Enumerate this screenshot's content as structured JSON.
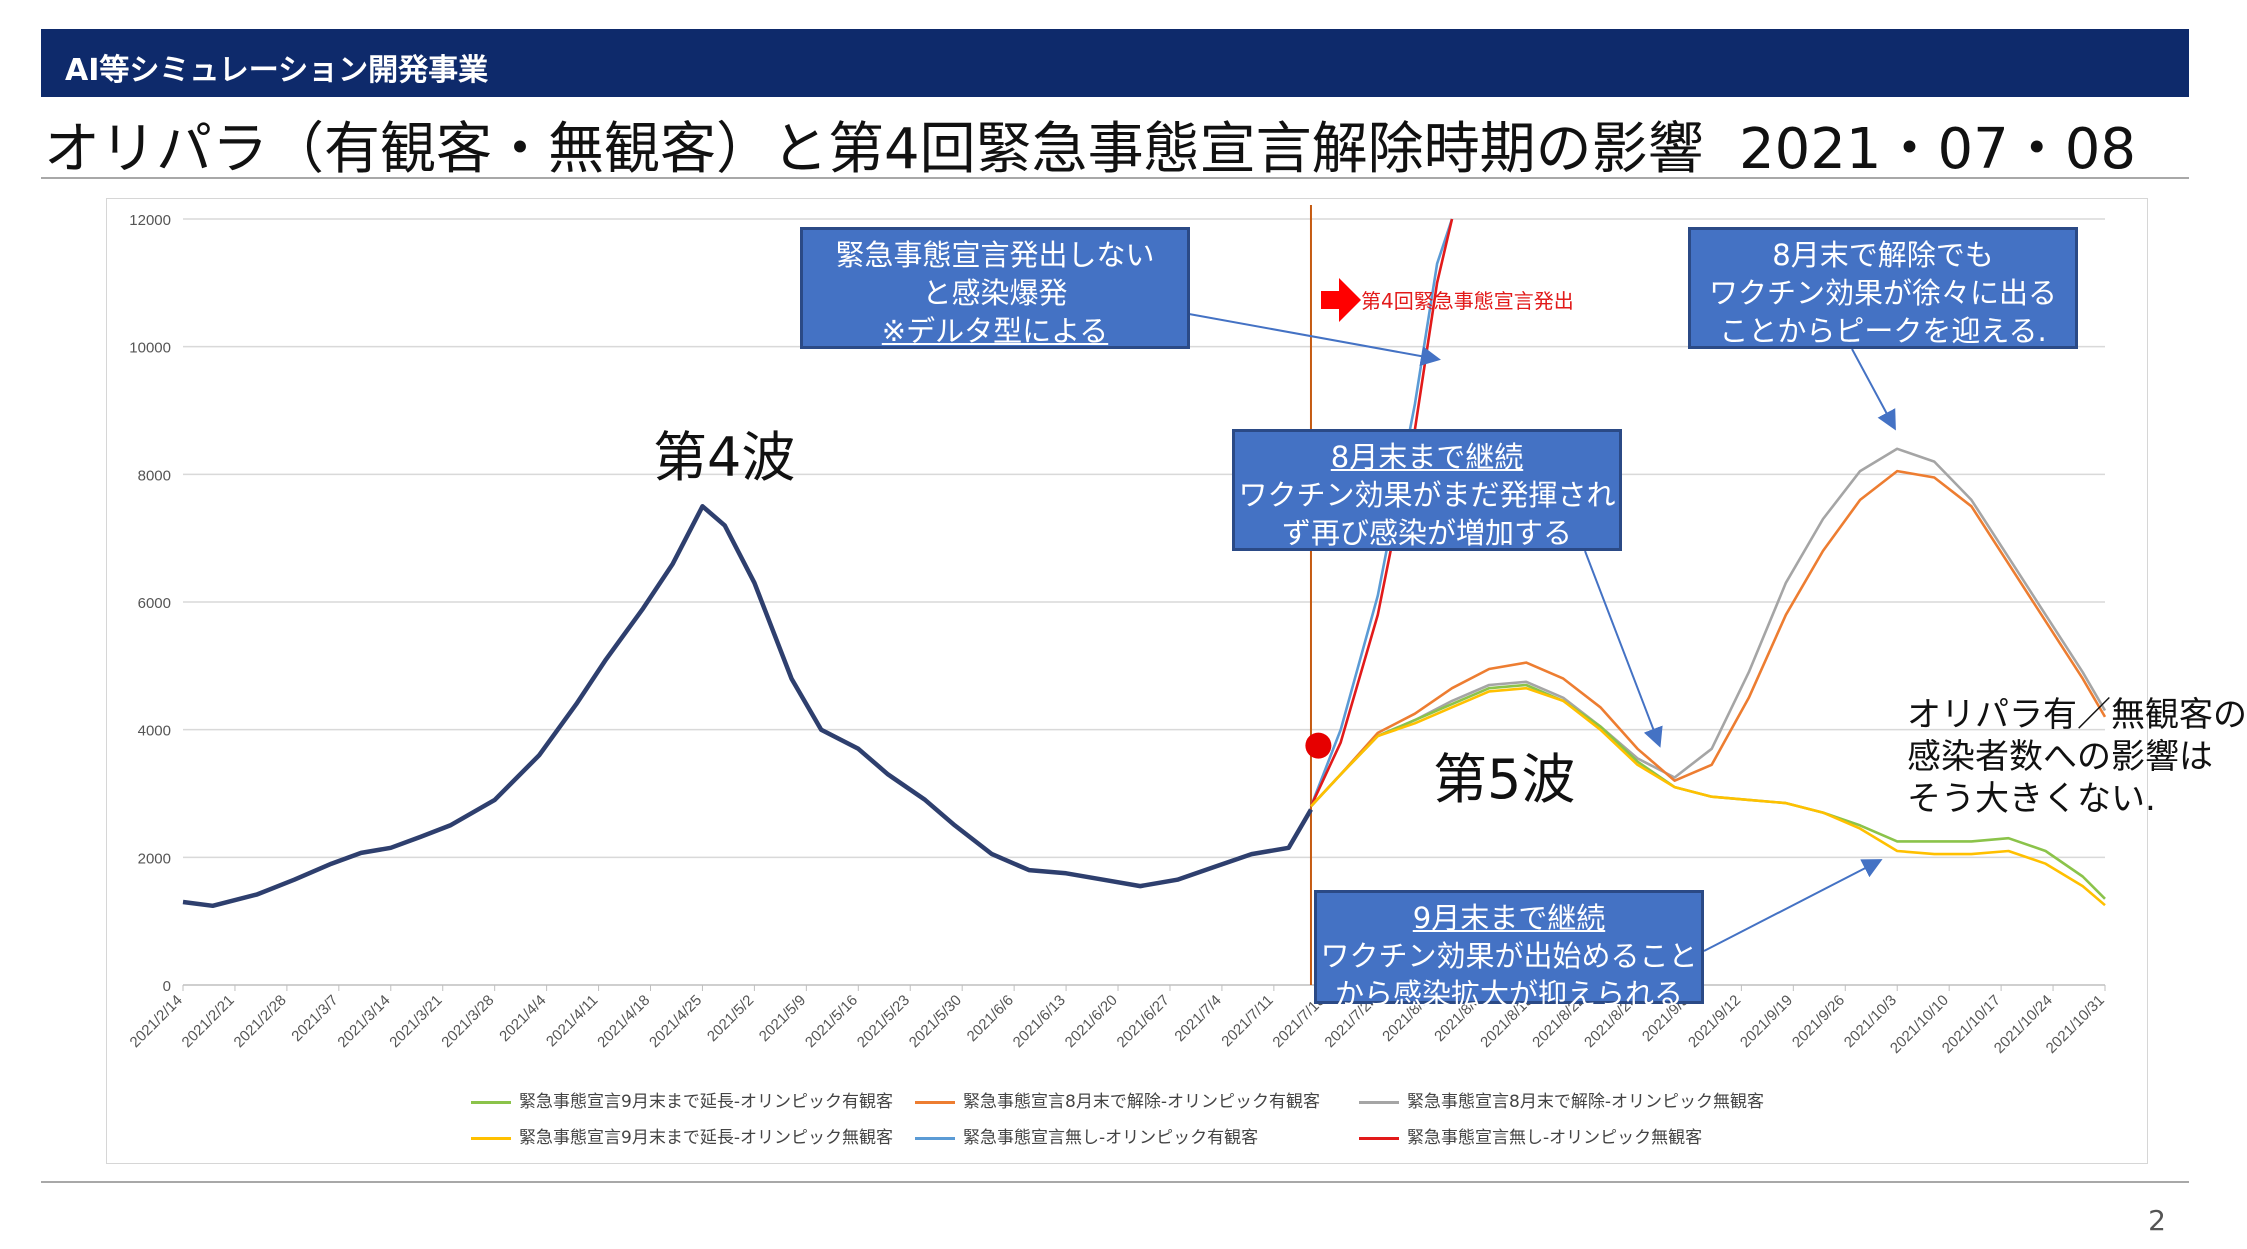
{
  "header": {
    "band_label": "AI等シミュレーション開発事業"
  },
  "title": "オリパラ（有観客・無観客）と第4回緊急事態宣言解除時期の影響",
  "date": "2021・07・08",
  "page_number": "2",
  "callouts": {
    "c1": {
      "line1": "緊急事態宣言発出しない",
      "line2": "と感染爆発",
      "line3": "※デルタ型による"
    },
    "c2": {
      "line1": "8月末で解除でも",
      "line2": "ワクチン効果が徐々に出る",
      "line3": "ことからピークを迎える."
    },
    "c3": {
      "line1": "8月末まで継続",
      "line2": "ワクチン効果がまだ発揮され",
      "line3": "ず再び感染が増加する"
    },
    "c4": {
      "line1": "9月末まで継続",
      "line2": "ワクチン効果が出始めること",
      "line3": "から感染拡大が抑えられる"
    }
  },
  "wave4_label": "第4波",
  "wave5_label": "第5波",
  "emergency_label": "第4回緊急事態宣言発出",
  "note": {
    "line1": "オリパラ有／無観客の",
    "line2": "感染者数への影響は",
    "line3": "そう大きくない."
  },
  "colors": {
    "header": "#0e2a6b",
    "callout": "#4472c4",
    "actual": "#2e3f6e",
    "green": "#8bc34a",
    "orange": "#ed7d31",
    "gray": "#a5a5a5",
    "yellow": "#ffc000",
    "blue": "#5b9bd5",
    "red": "#e21a1a",
    "vline": "#c55a11"
  },
  "chart_data": {
    "type": "line",
    "ylim": [
      0,
      12000
    ],
    "yticks": [
      0,
      2000,
      4000,
      6000,
      8000,
      10000,
      12000
    ],
    "xlim": [
      "2021/2/14",
      "2021/10/31"
    ],
    "x_tick_labels": [
      "2021/2/14",
      "2021/2/21",
      "2021/2/28",
      "2021/3/7",
      "2021/3/14",
      "2021/3/21",
      "2021/3/28",
      "2021/4/4",
      "2021/4/11",
      "2021/4/18",
      "2021/4/25",
      "2021/5/2",
      "2021/5/9",
      "2021/5/16",
      "2021/5/23",
      "2021/5/30",
      "2021/6/6",
      "2021/6/13",
      "2021/6/20",
      "2021/6/27",
      "2021/7/4",
      "2021/7/11",
      "2021/7/18",
      "2021/7/25",
      "2021/8/1",
      "2021/8/8",
      "2021/8/15",
      "2021/8/22",
      "2021/8/29",
      "2021/9/5",
      "2021/9/12",
      "2021/9/19",
      "2021/9/26",
      "2021/10/3",
      "2021/10/10",
      "2021/10/17",
      "2021/10/24",
      "2021/10/31"
    ],
    "vline_x": "2021/7/16",
    "marker": {
      "x": "2021/7/17",
      "y": 3750
    },
    "actual": {
      "x": [
        "2021/2/14",
        "2021/2/18",
        "2021/2/24",
        "2021/3/1",
        "2021/3/6",
        "2021/3/10",
        "2021/3/14",
        "2021/3/18",
        "2021/3/22",
        "2021/3/28",
        "2021/4/3",
        "2021/4/8",
        "2021/4/12",
        "2021/4/17",
        "2021/4/21",
        "2021/4/25",
        "2021/4/28",
        "2021/5/2",
        "2021/5/7",
        "2021/5/11",
        "2021/5/16",
        "2021/5/20",
        "2021/5/25",
        "2021/5/29",
        "2021/6/3",
        "2021/6/8",
        "2021/6/13",
        "2021/6/18",
        "2021/6/23",
        "2021/6/28",
        "2021/7/3",
        "2021/7/8",
        "2021/7/13",
        "2021/7/16"
      ],
      "y": [
        1300,
        1240,
        1420,
        1650,
        1900,
        2070,
        2150,
        2320,
        2500,
        2900,
        3600,
        4400,
        5100,
        5900,
        6600,
        7500,
        7200,
        6300,
        4800,
        4000,
        3700,
        3300,
        2900,
        2500,
        2050,
        1800,
        1750,
        1650,
        1550,
        1650,
        1850,
        2050,
        2150,
        2750
      ]
    },
    "series": [
      {
        "name": "緊急事態宣言9月末まで延長-オリンピック有観客",
        "color": "#8bc34a",
        "x": [
          "2021/7/16",
          "2021/7/20",
          "2021/7/25",
          "2021/7/30",
          "2021/8/4",
          "2021/8/9",
          "2021/8/14",
          "2021/8/19",
          "2021/8/24",
          "2021/8/29",
          "2021/9/3",
          "2021/9/8",
          "2021/9/13",
          "2021/9/18",
          "2021/9/23",
          "2021/9/28",
          "2021/10/3",
          "2021/10/8",
          "2021/10/13",
          "2021/10/18",
          "2021/10/23",
          "2021/10/28",
          "2021/10/31"
        ],
        "y": [
          2800,
          3300,
          3900,
          4150,
          4400,
          4650,
          4700,
          4450,
          4050,
          3500,
          3100,
          2950,
          2900,
          2850,
          2700,
          2500,
          2250,
          2250,
          2250,
          2300,
          2100,
          1700,
          1350
        ]
      },
      {
        "name": "緊急事態宣言8月末で解除-オリンピック有観客",
        "color": "#ed7d31",
        "x": [
          "2021/7/16",
          "2021/7/20",
          "2021/7/25",
          "2021/7/30",
          "2021/8/4",
          "2021/8/9",
          "2021/8/14",
          "2021/8/19",
          "2021/8/24",
          "2021/8/29",
          "2021/9/3",
          "2021/9/8",
          "2021/9/13",
          "2021/9/18",
          "2021/9/23",
          "2021/9/28",
          "2021/10/3",
          "2021/10/8",
          "2021/10/13",
          "2021/10/18",
          "2021/10/23",
          "2021/10/28",
          "2021/10/31"
        ],
        "y": [
          2800,
          3300,
          3950,
          4250,
          4650,
          4950,
          5050,
          4800,
          4350,
          3700,
          3200,
          3450,
          4500,
          5800,
          6800,
          7600,
          8050,
          7950,
          7500,
          6600,
          5700,
          4800,
          4200
        ]
      },
      {
        "name": "緊急事態宣言8月末で解除-オリンピック無観客",
        "color": "#a5a5a5",
        "x": [
          "2021/7/16",
          "2021/7/20",
          "2021/7/25",
          "2021/7/30",
          "2021/8/4",
          "2021/8/9",
          "2021/8/14",
          "2021/8/19",
          "2021/8/24",
          "2021/8/29",
          "2021/9/3",
          "2021/9/8",
          "2021/9/13",
          "2021/9/18",
          "2021/9/23",
          "2021/9/28",
          "2021/10/3",
          "2021/10/8",
          "2021/10/13",
          "2021/10/18",
          "2021/10/23",
          "2021/10/28",
          "2021/10/31"
        ],
        "y": [
          2800,
          3300,
          3900,
          4150,
          4450,
          4700,
          4750,
          4500,
          4050,
          3550,
          3250,
          3700,
          4900,
          6300,
          7300,
          8050,
          8400,
          8200,
          7600,
          6700,
          5800,
          4900,
          4300
        ]
      },
      {
        "name": "緊急事態宣言9月末まで延長-オリンピック無観客",
        "color": "#ffc000",
        "x": [
          "2021/7/16",
          "2021/7/20",
          "2021/7/25",
          "2021/7/30",
          "2021/8/4",
          "2021/8/9",
          "2021/8/14",
          "2021/8/19",
          "2021/8/24",
          "2021/8/29",
          "2021/9/3",
          "2021/9/8",
          "2021/9/13",
          "2021/9/18",
          "2021/9/23",
          "2021/9/28",
          "2021/10/3",
          "2021/10/8",
          "2021/10/13",
          "2021/10/18",
          "2021/10/23",
          "2021/10/28",
          "2021/10/31"
        ],
        "y": [
          2800,
          3300,
          3900,
          4100,
          4350,
          4600,
          4650,
          4450,
          4000,
          3450,
          3100,
          2950,
          2900,
          2850,
          2700,
          2450,
          2100,
          2050,
          2050,
          2100,
          1900,
          1550,
          1250
        ]
      },
      {
        "name": "緊急事態宣言無し-オリンピック有観客",
        "color": "#5b9bd5",
        "x": [
          "2021/7/16",
          "2021/7/20",
          "2021/7/25",
          "2021/7/30",
          "2021/8/2",
          "2021/8/4"
        ],
        "y": [
          2800,
          4000,
          6100,
          9100,
          11300,
          12000
        ]
      },
      {
        "name": "緊急事態宣言無し-オリンピック無観客",
        "color": "#e21a1a",
        "x": [
          "2021/7/16",
          "2021/7/20",
          "2021/7/25",
          "2021/7/30",
          "2021/8/2",
          "2021/8/4"
        ],
        "y": [
          2800,
          3800,
          5800,
          8700,
          11000,
          12000
        ]
      }
    ]
  }
}
